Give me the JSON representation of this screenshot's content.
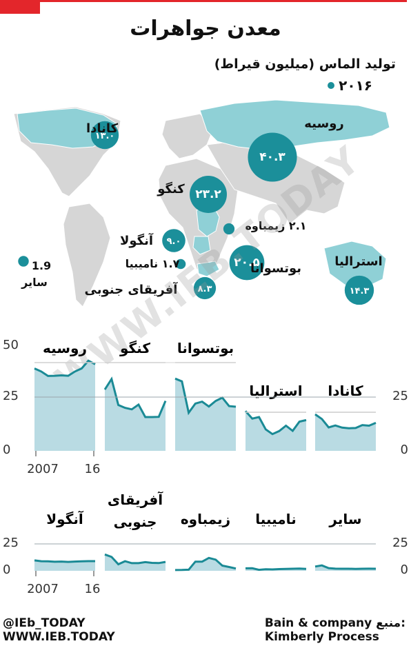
{
  "title": "معدن جواهرات",
  "map": {
    "subtitle": "تولید الماس (میلیون قیراط)",
    "legend": "۲۰۱۶",
    "bubbles": [
      {
        "key": "canada",
        "label": "کانادا",
        "value": 13.0,
        "value_text": "۱۳.۰"
      },
      {
        "key": "russia",
        "label": "روسیه",
        "value": 40.3,
        "value_text": "۴۰.۳"
      },
      {
        "key": "congo",
        "label": "کنگو",
        "value": 23.2,
        "value_text": "۲۳.۲"
      },
      {
        "key": "zimbabwe",
        "label": "زیمباوه",
        "value": 2.1,
        "value_text": "۲.۱"
      },
      {
        "key": "angola",
        "label": "آنگولا",
        "value": 9.0,
        "value_text": "۹.۰"
      },
      {
        "key": "botswana",
        "label": "بوتسوانا",
        "value": 20.5,
        "value_text": "۲۰.۵"
      },
      {
        "key": "namibia",
        "label": "نامیبیا",
        "value": 1.7,
        "value_text": "۱.۷"
      },
      {
        "key": "south_africa",
        "label": "آفریقای جنوبی",
        "value": 8.3,
        "value_text": "۸.۳"
      },
      {
        "key": "australia",
        "label": "استرالیا",
        "value": 14.3,
        "value_text": "۱۴.۳"
      },
      {
        "key": "other",
        "label": "سایر",
        "value": 1.9,
        "value_text": "1.9"
      }
    ]
  },
  "chart_data": {
    "type": "area",
    "x": [
      2007,
      2008,
      2009,
      2010,
      2011,
      2012,
      2013,
      2014,
      2015,
      2016
    ],
    "ylim": [
      0,
      50
    ],
    "tick_labels": {
      "y_left_row1": [
        "50",
        "25",
        "0"
      ],
      "y_right_row1": [
        "25",
        "0"
      ],
      "y_left_row2": [
        "25",
        "0"
      ],
      "y_right_row2": [
        "25",
        "0"
      ],
      "x": [
        "2007",
        "16"
      ]
    },
    "series": [
      {
        "key": "russia",
        "name": "روسیه",
        "values": [
          38.3,
          36.9,
          34.8,
          34.9,
          35.1,
          34.9,
          36.9,
          38.3,
          41.9,
          40.3
        ]
      },
      {
        "key": "congo",
        "name": "کنگو",
        "values": [
          28.5,
          33.4,
          21.3,
          20.0,
          19.3,
          21.5,
          15.7,
          15.7,
          15.8,
          23.2
        ]
      },
      {
        "key": "botswana",
        "name": "بوتسوانا",
        "values": [
          33.6,
          32.3,
          17.7,
          22.0,
          22.9,
          20.6,
          23.2,
          24.7,
          20.8,
          20.5
        ]
      },
      {
        "key": "australia",
        "name": "استرالیا",
        "values": [
          18.5,
          15.0,
          15.7,
          10.0,
          7.8,
          9.2,
          11.7,
          9.3,
          13.6,
          14.3
        ]
      },
      {
        "key": "canada",
        "name": "کانادا",
        "values": [
          17.0,
          14.8,
          10.9,
          11.8,
          10.8,
          10.5,
          10.6,
          12.0,
          11.7,
          13.0
        ]
      },
      {
        "key": "angola",
        "name": "آنگولا",
        "values": [
          9.7,
          8.9,
          8.8,
          8.4,
          8.6,
          8.3,
          8.6,
          8.8,
          9.0,
          9.0
        ]
      },
      {
        "key": "south_africa",
        "name": "آفریقای جنوبی",
        "values": [
          15.2,
          12.9,
          6.1,
          8.9,
          7.1,
          7.1,
          8.1,
          7.4,
          7.2,
          8.3
        ]
      },
      {
        "key": "zimbabwe",
        "name": "زیمباوه",
        "values": [
          0.7,
          0.8,
          1.0,
          8.5,
          8.5,
          12.0,
          10.4,
          4.8,
          3.5,
          2.1
        ]
      },
      {
        "key": "namibia",
        "name": "نامیبیا",
        "values": [
          2.3,
          2.4,
          0.9,
          1.5,
          1.3,
          1.6,
          1.7,
          1.9,
          2.1,
          1.7
        ]
      },
      {
        "key": "other",
        "name": "سایر",
        "values": [
          4.0,
          5.0,
          2.5,
          2.0,
          1.9,
          1.9,
          1.8,
          1.9,
          2.0,
          1.9
        ]
      }
    ]
  },
  "labels": {
    "south_africa_line1": "آفریقای",
    "south_africa_line2": "جنوبی"
  },
  "watermark": "WWW.IEB.TODAY",
  "footer": {
    "handle": "@IEb_TODAY",
    "website": "WWW.IEB.TODAY",
    "source_label": "منبع:",
    "source_1": "Bain & company",
    "source_2": "Kimberly Process"
  },
  "colors": {
    "bubble": "#1b8f9a",
    "area_fill": "#b9dbe3",
    "area_line": "#1a8a95",
    "map_land": "#d6d6d6",
    "map_highlight": "#8fd0d6",
    "panel_rule": "#cccccc"
  }
}
